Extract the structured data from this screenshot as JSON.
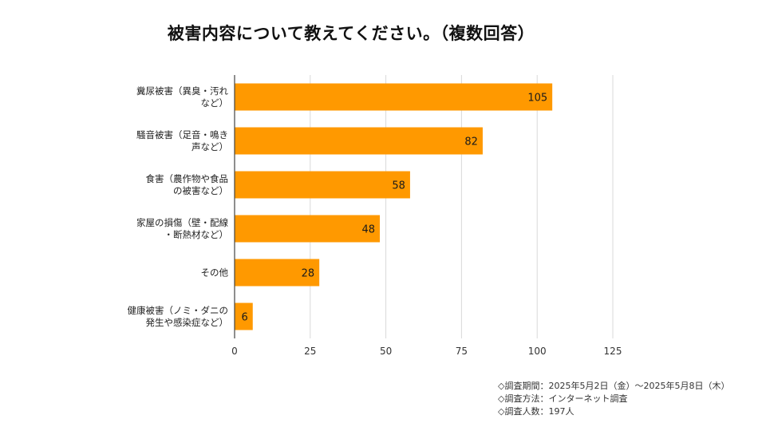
{
  "chart_data": {
    "type": "bar",
    "orientation": "horizontal",
    "title": "被害内容について教えてください。（複数回答）",
    "categories": [
      [
        "糞尿被害（異臭・汚れ",
        "など）"
      ],
      [
        "騒音被害（足音・鳴き",
        "声など）"
      ],
      [
        "食害（農作物や食品",
        "の被害など）"
      ],
      [
        "家屋の損傷（壁・配線",
        "・断熱材など）"
      ],
      [
        "その他"
      ],
      [
        "健康被害（ノミ・ダニの",
        "発生や感染症など）"
      ]
    ],
    "values": [
      105,
      82,
      58,
      48,
      28,
      6
    ],
    "xlim": [
      0,
      125
    ],
    "xticks": [
      0,
      25,
      50,
      75,
      100,
      125
    ],
    "grid": true,
    "legend": "none",
    "colors": {
      "bar": "#FF9900",
      "grid": "#d9d9d9",
      "axis": "#444444"
    }
  },
  "footnotes": [
    "◇調査期間：2025年5月2日（金）～2025年5月8日（木）",
    "◇調査方法：インターネット調査",
    "◇調査人数：197人"
  ]
}
